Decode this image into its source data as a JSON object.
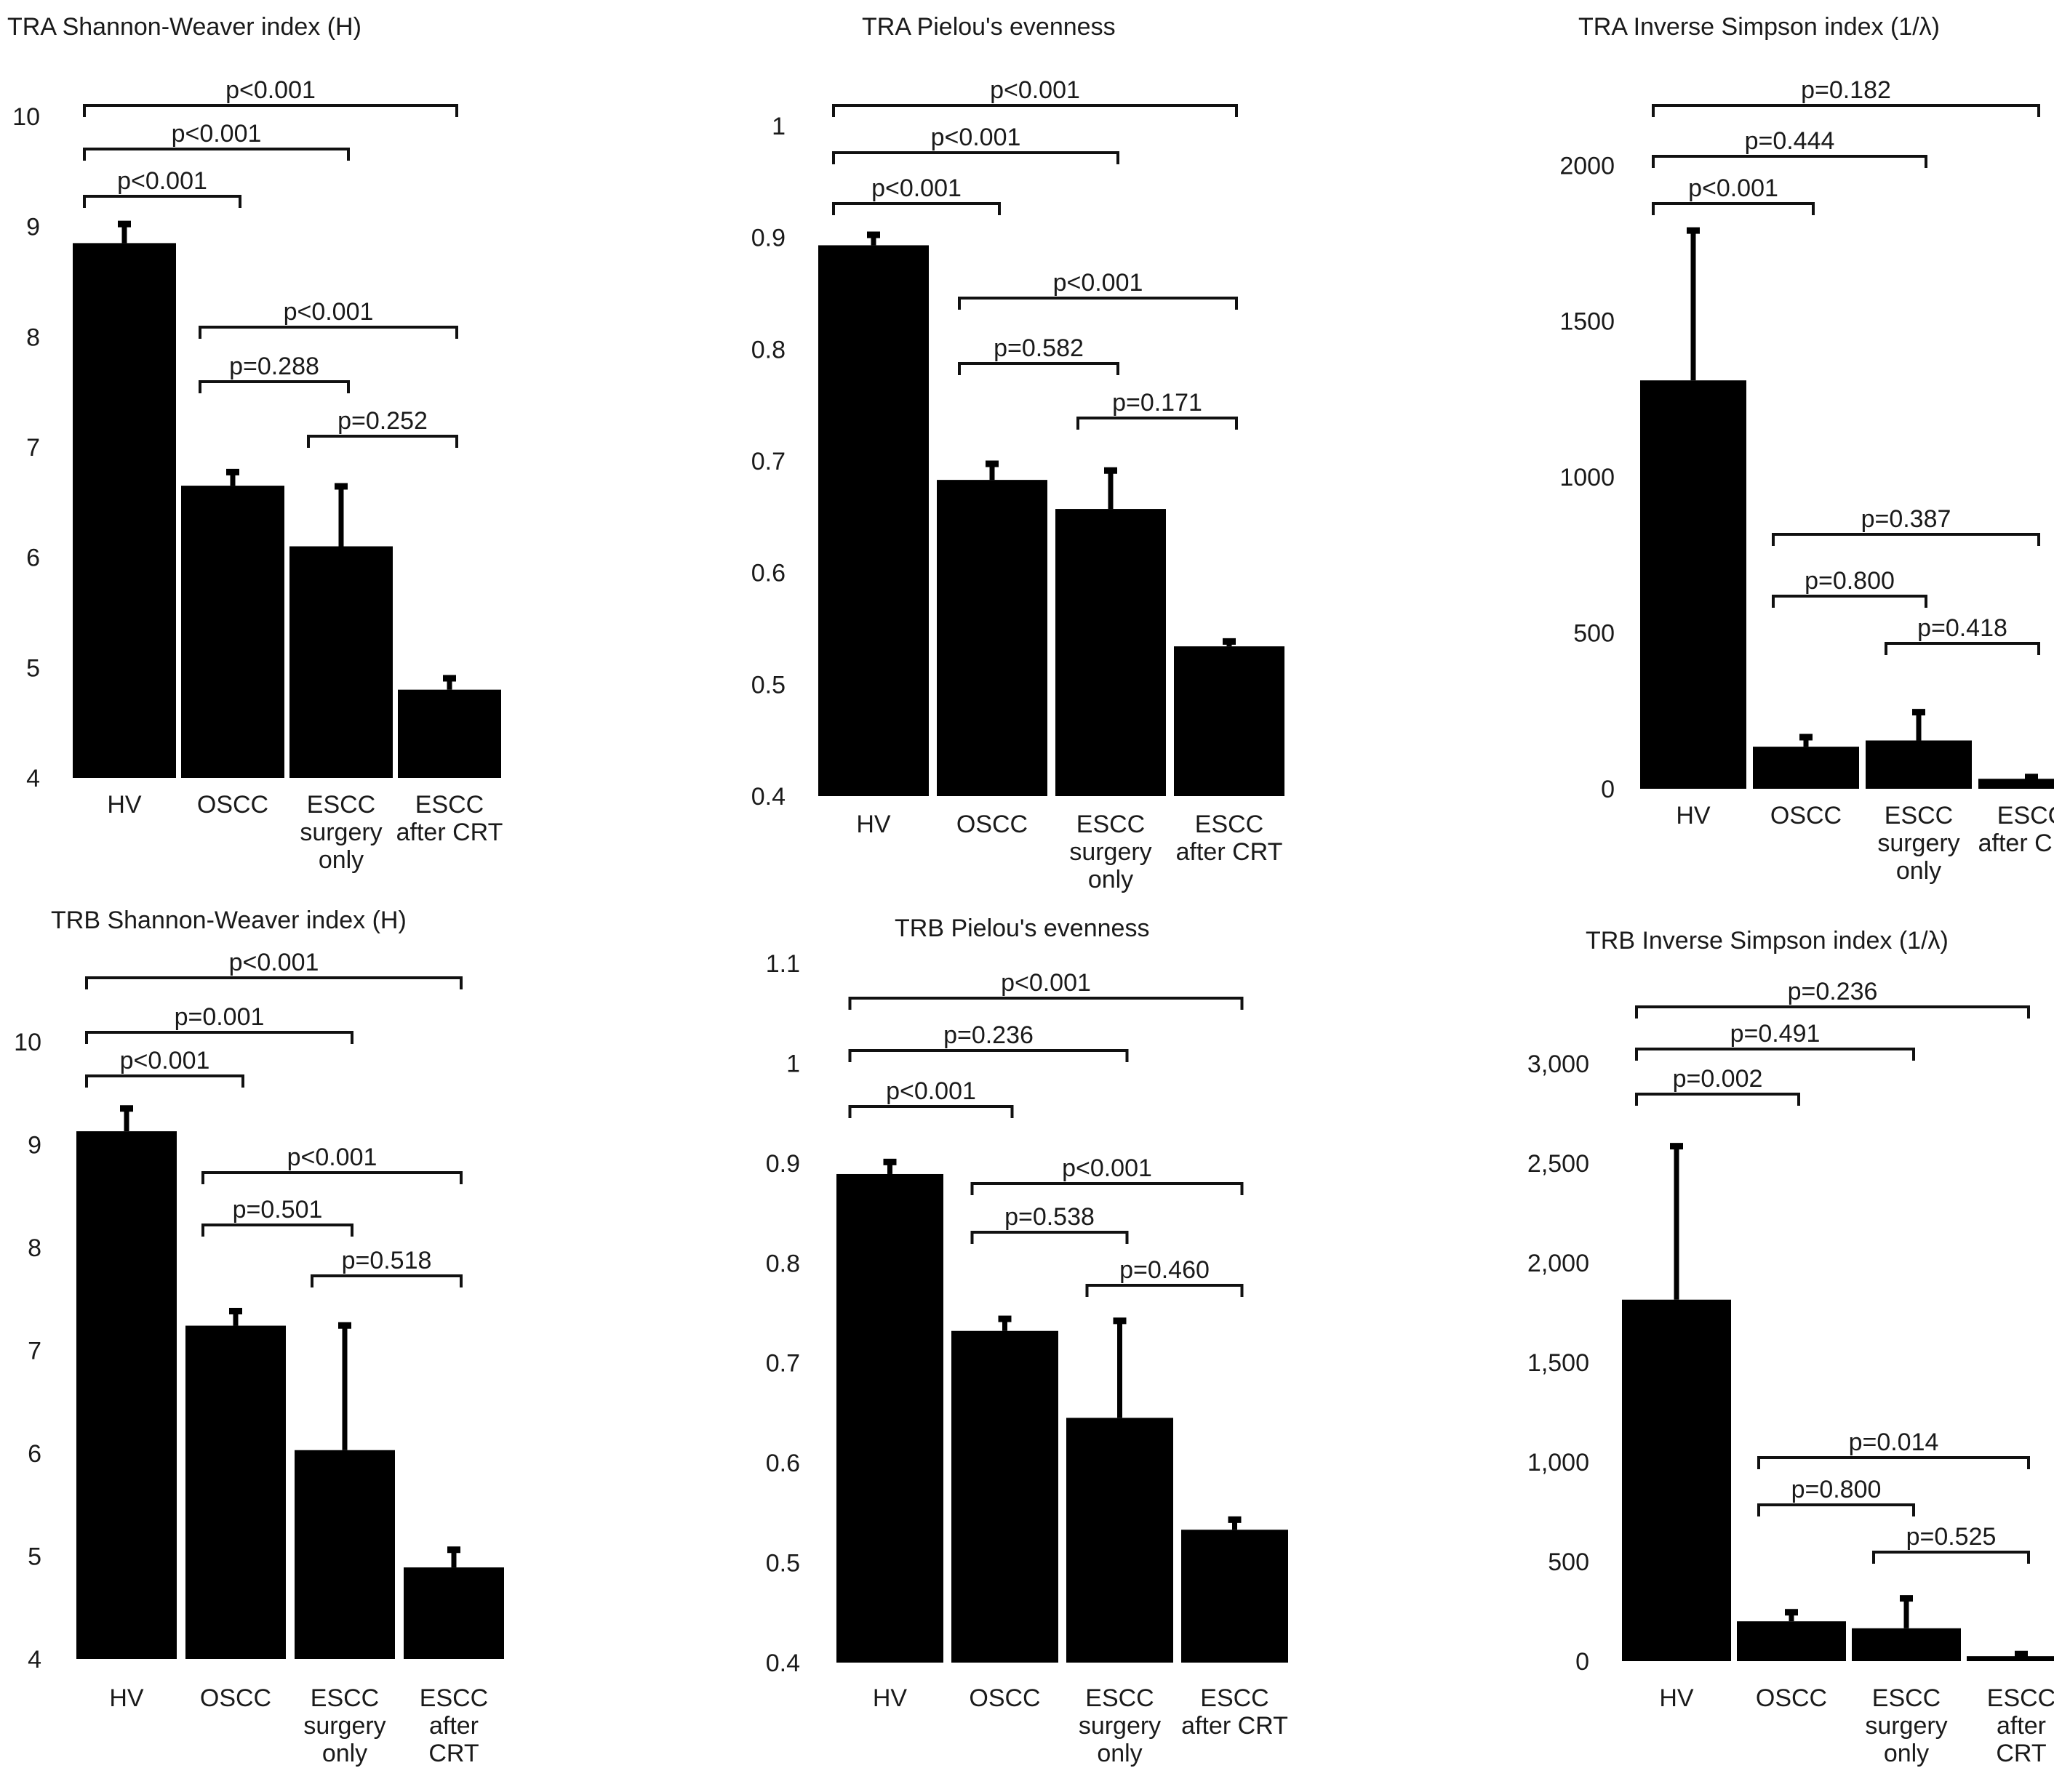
{
  "figure": {
    "background": "#ffffff",
    "bar_color": "#000000",
    "text_color": "#1a1a1a"
  },
  "chart_data": [
    {
      "type": "bar",
      "title": "TRA Shannon-Weaver index (H)",
      "categories": [
        [
          "HV"
        ],
        [
          "OSCC"
        ],
        [
          "ESCC",
          "surgery",
          "only"
        ],
        [
          "ESCC",
          "after CRT"
        ]
      ],
      "values": [
        8.85,
        6.65,
        6.1,
        4.8
      ],
      "errors": [
        0.2,
        0.15,
        0.57,
        0.13
      ],
      "ylim": [
        4,
        10
      ],
      "yticks": [
        4,
        5,
        6,
        7,
        8,
        9,
        10
      ],
      "ytick_labels": [
        "4",
        "5",
        "6",
        "7",
        "8",
        "9",
        "10"
      ],
      "xlabel": "",
      "ylabel": "",
      "comparisons": [
        {
          "from": 0,
          "to": 3,
          "label": "p<0.001"
        },
        {
          "from": 0,
          "to": 2,
          "label": "p<0.001"
        },
        {
          "from": 0,
          "to": 1,
          "label": "p<0.001"
        },
        {
          "from": 1,
          "to": 3,
          "label": "p<0.001"
        },
        {
          "from": 1,
          "to": 2,
          "label": "p=0.288"
        },
        {
          "from": 2,
          "to": 3,
          "label": "p=0.252"
        }
      ]
    },
    {
      "type": "bar",
      "title": "TRA Pielou's evenness",
      "categories": [
        [
          "HV"
        ],
        [
          "OSCC"
        ],
        [
          "ESCC",
          "surgery",
          "only"
        ],
        [
          "ESCC",
          "after CRT"
        ]
      ],
      "values": [
        0.893,
        0.683,
        0.657,
        0.534
      ],
      "errors": [
        0.012,
        0.017,
        0.037,
        0.007
      ],
      "ylim": [
        0.4,
        1
      ],
      "yticks": [
        0.4,
        0.5,
        0.6,
        0.7,
        0.8,
        0.9,
        1
      ],
      "ytick_labels": [
        "0.4",
        "0.5",
        "0.6",
        "0.7",
        "0.8",
        "0.9",
        "1"
      ],
      "xlabel": "",
      "ylabel": "",
      "comparisons": [
        {
          "from": 0,
          "to": 3,
          "label": "p<0.001"
        },
        {
          "from": 0,
          "to": 2,
          "label": "p<0.001"
        },
        {
          "from": 0,
          "to": 1,
          "label": "p<0.001"
        },
        {
          "from": 1,
          "to": 3,
          "label": "p<0.001"
        },
        {
          "from": 1,
          "to": 2,
          "label": "p=0.582"
        },
        {
          "from": 2,
          "to": 3,
          "label": "p=0.171"
        }
      ]
    },
    {
      "type": "bar",
      "title": "TRA Inverse Simpson index (1/λ)",
      "categories": [
        [
          "HV"
        ],
        [
          "OSCC"
        ],
        [
          "ESCC",
          "surgery",
          "only"
        ],
        [
          "ESCC",
          "after CRT"
        ]
      ],
      "values": [
        1310,
        135,
        155,
        32
      ],
      "errors": [
        490,
        40,
        100,
        15
      ],
      "ylim": [
        0,
        2150
      ],
      "yticks": [
        0,
        500,
        1000,
        1500,
        2000
      ],
      "ytick_labels": [
        "0",
        "500",
        "1000",
        "1500",
        "2000"
      ],
      "xlabel": "",
      "ylabel": "",
      "comparisons": [
        {
          "from": 0,
          "to": 3,
          "label": "p=0.182"
        },
        {
          "from": 0,
          "to": 2,
          "label": "p=0.444"
        },
        {
          "from": 0,
          "to": 1,
          "label": "p<0.001"
        },
        {
          "from": 1,
          "to": 3,
          "label": "p=0.387"
        },
        {
          "from": 1,
          "to": 2,
          "label": "p=0.800"
        },
        {
          "from": 2,
          "to": 3,
          "label": "p=0.418"
        }
      ]
    },
    {
      "type": "bar",
      "title": "TRB  Shannon-Weaver index (H)",
      "categories": [
        [
          "HV"
        ],
        [
          "OSCC"
        ],
        [
          "ESCC",
          "surgery",
          "only"
        ],
        [
          "ESCC",
          "after",
          "CRT"
        ]
      ],
      "values": [
        9.13,
        7.24,
        6.03,
        4.89
      ],
      "errors": [
        0.25,
        0.17,
        1.24,
        0.2
      ],
      "ylim": [
        4,
        10
      ],
      "yticks": [
        4,
        5,
        6,
        7,
        8,
        9,
        10
      ],
      "ytick_labels": [
        "4",
        "5",
        "6",
        "7",
        "8",
        "9",
        "10"
      ],
      "xlabel": "",
      "ylabel": "",
      "comparisons": [
        {
          "from": 0,
          "to": 3,
          "label": "p<0.001"
        },
        {
          "from": 0,
          "to": 2,
          "label": "p=0.001"
        },
        {
          "from": 0,
          "to": 1,
          "label": "p<0.001"
        },
        {
          "from": 1,
          "to": 3,
          "label": "p<0.001"
        },
        {
          "from": 1,
          "to": 2,
          "label": "p=0.501"
        },
        {
          "from": 2,
          "to": 3,
          "label": "p=0.518"
        }
      ]
    },
    {
      "type": "bar",
      "title": "TRB Pielou's evenness",
      "categories": [
        [
          "HV"
        ],
        [
          "OSCC"
        ],
        [
          "ESCC",
          "surgery",
          "only"
        ],
        [
          "ESCC",
          "after CRT"
        ]
      ],
      "values": [
        0.889,
        0.732,
        0.645,
        0.533
      ],
      "errors": [
        0.015,
        0.015,
        0.1,
        0.013
      ],
      "ylim": [
        0.4,
        1.1
      ],
      "yticks": [
        0.4,
        0.5,
        0.6,
        0.7,
        0.8,
        0.9,
        1,
        1.1
      ],
      "ytick_labels": [
        "0.4",
        "0.5",
        "0.6",
        "0.7",
        "0.8",
        "0.9",
        "1",
        "1.1"
      ],
      "xlabel": "",
      "ylabel": "",
      "comparisons": [
        {
          "from": 0,
          "to": 3,
          "label": "p<0.001"
        },
        {
          "from": 0,
          "to": 2,
          "label": "p=0.236"
        },
        {
          "from": 0,
          "to": 1,
          "label": "p<0.001"
        },
        {
          "from": 1,
          "to": 3,
          "label": "p<0.001"
        },
        {
          "from": 1,
          "to": 2,
          "label": "p=0.538"
        },
        {
          "from": 2,
          "to": 3,
          "label": "p=0.460"
        }
      ]
    },
    {
      "type": "bar",
      "title": "TRB  Inverse Simpson index (1/λ)",
      "categories": [
        [
          "HV"
        ],
        [
          "OSCC"
        ],
        [
          "ESCC",
          "surgery",
          "only"
        ],
        [
          "ESCC",
          "after",
          "CRT"
        ]
      ],
      "values": [
        1815,
        200,
        165,
        25
      ],
      "errors": [
        785,
        60,
        165,
        25
      ],
      "ylim": [
        0,
        3150
      ],
      "yticks": [
        0,
        500,
        1000,
        1500,
        2000,
        2500,
        3000
      ],
      "ytick_labels": [
        "0",
        "500",
        "1,000",
        "1,500",
        "2,000",
        "2,500",
        "3,000"
      ],
      "xlabel": "",
      "ylabel": "",
      "comparisons": [
        {
          "from": 0,
          "to": 3,
          "label": "p=0.236"
        },
        {
          "from": 0,
          "to": 2,
          "label": "p=0.491"
        },
        {
          "from": 0,
          "to": 1,
          "label": "p=0.002"
        },
        {
          "from": 1,
          "to": 3,
          "label": "p=0.014"
        },
        {
          "from": 1,
          "to": 2,
          "label": "p=0.800"
        },
        {
          "from": 2,
          "to": 3,
          "label": "p=0.525"
        }
      ]
    }
  ]
}
